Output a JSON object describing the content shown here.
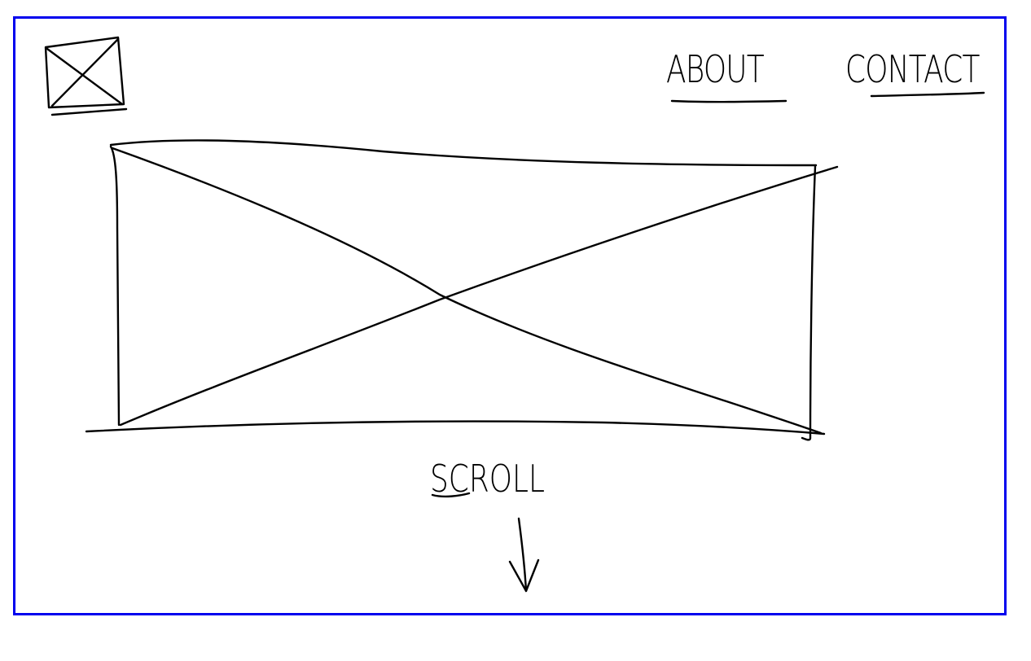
{
  "header": {
    "logo_icon": "image-placeholder-icon",
    "nav": [
      {
        "label": "ABOUT"
      },
      {
        "label": "CONTACT"
      }
    ]
  },
  "hero": {
    "image_icon": "image-placeholder-icon"
  },
  "scroll_hint": {
    "label": "SCROll",
    "icon": "arrow-down-icon"
  },
  "colors": {
    "frame": "#0000ee",
    "ink": "#000000",
    "background": "#ffffff"
  }
}
